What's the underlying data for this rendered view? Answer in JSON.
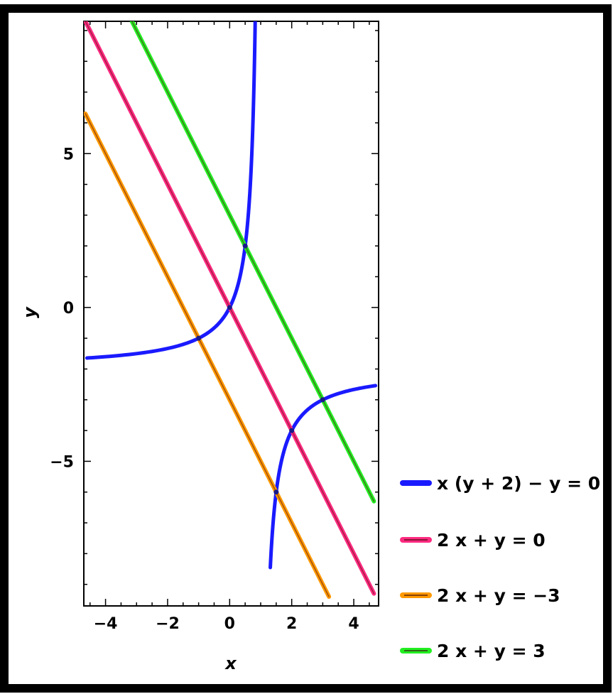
{
  "chart_data": {
    "type": "line",
    "xlabel": "x",
    "ylabel": "y",
    "xlim": [
      -4.7,
      4.8
    ],
    "ylim": [
      -9.7,
      9.3
    ],
    "x_ticks": [
      -4,
      -2,
      0,
      2,
      4
    ],
    "x_tick_labels": [
      "−4",
      "−2",
      "0",
      "2",
      "4"
    ],
    "y_ticks": [
      -5,
      0,
      5
    ],
    "y_tick_labels": [
      "−5",
      "0",
      "5"
    ],
    "grid": false,
    "legend_position": "right",
    "series": [
      {
        "name": "x (y + 2) − y = 0",
        "color": "#1a1aff",
        "kind": "hyperbola",
        "equation": "y = 2x / (1 - x)",
        "branches": [
          {
            "x": [
              -4.6,
              -4,
              -3,
              -2,
              -1.5,
              -1,
              -0.5,
              0,
              0.3,
              0.5,
              0.6,
              0.7,
              0.75,
              0.8,
              0.85,
              0.88
            ]
          },
          {
            "x": [
              1.31,
              1.35,
              1.4,
              1.5,
              1.6,
              1.8,
              2,
              2.5,
              3,
              3.5,
              4,
              4.7
            ]
          }
        ]
      },
      {
        "name": "2 x + y = 0",
        "color": "#ff2a80",
        "kind": "line",
        "x": [
          -4.65,
          4.65
        ],
        "y": [
          9.3,
          -9.3
        ]
      },
      {
        "name": "2 x + y = −3",
        "color": "#ff9900",
        "kind": "line",
        "x": [
          -4.65,
          3.2
        ],
        "y": [
          6.3,
          -9.4
        ]
      },
      {
        "name": "2 x + y = 3",
        "color": "#22ee22",
        "kind": "line",
        "x": [
          -3.15,
          4.65
        ],
        "y": [
          9.3,
          -6.3
        ]
      }
    ],
    "intersection_points": [
      {
        "x": 0,
        "y": 0
      },
      {
        "x": 2,
        "y": -4
      },
      {
        "x": -1,
        "y": -1
      },
      {
        "x": 1.5,
        "y": -6
      },
      {
        "x": 0.5,
        "y": 2
      },
      {
        "x": 3,
        "y": -3
      }
    ]
  }
}
